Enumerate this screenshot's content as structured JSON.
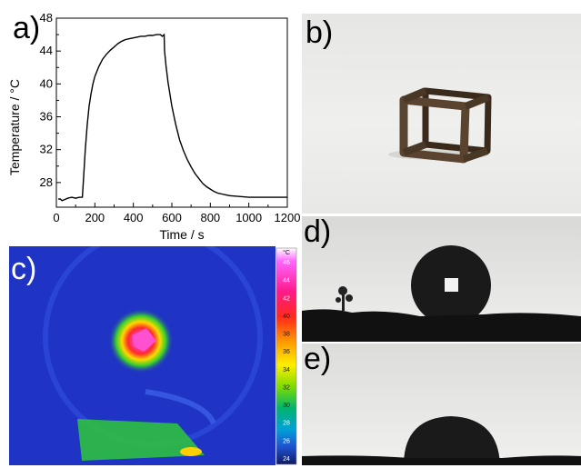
{
  "panel_labels": {
    "a": "a)",
    "b": "b)",
    "c": "c)",
    "d": "d)",
    "e": "e)"
  },
  "chart_data": {
    "type": "line",
    "xlabel": "Time / s",
    "ylabel": "Temperature / °C",
    "xlim": [
      0,
      1200
    ],
    "ylim": [
      25,
      48
    ],
    "xticks": [
      0,
      200,
      400,
      600,
      800,
      1000,
      1200
    ],
    "yticks": [
      28,
      32,
      36,
      40,
      44,
      48
    ],
    "grid": false,
    "series": [
      {
        "x": [
          10,
          20,
          30,
          40,
          60,
          80,
          100,
          120,
          135,
          140,
          150,
          160,
          170,
          180,
          190,
          200,
          220,
          240,
          260,
          280,
          300,
          320,
          340,
          360,
          380,
          400,
          420,
          440,
          460,
          480,
          500,
          520,
          540,
          550,
          560,
          562,
          570,
          580,
          600,
          620,
          640,
          660,
          680,
          700,
          720,
          740,
          760,
          780,
          800,
          820,
          840,
          860,
          880,
          900,
          950,
          1000,
          1050,
          1100,
          1150,
          1200
        ],
        "y": [
          26.0,
          26.0,
          25.8,
          25.9,
          26.1,
          26.2,
          26.1,
          26.2,
          26.2,
          28.0,
          32.0,
          35.0,
          37.3,
          38.8,
          40.0,
          40.9,
          42.1,
          43.0,
          43.6,
          44.1,
          44.5,
          44.9,
          45.2,
          45.4,
          45.5,
          45.6,
          45.7,
          45.8,
          45.8,
          45.9,
          45.9,
          46.0,
          46.0,
          45.8,
          46.0,
          44.0,
          42.2,
          40.2,
          37.3,
          35.1,
          33.2,
          31.9,
          30.8,
          29.9,
          29.1,
          28.5,
          27.9,
          27.5,
          27.2,
          26.9,
          26.7,
          26.6,
          26.5,
          26.4,
          26.3,
          26.2,
          26.2,
          26.2,
          26.2,
          26.2
        ]
      }
    ]
  },
  "thermal_scale": {
    "unit": "°C",
    "ticks": [
      "46",
      "44",
      "42",
      "40",
      "38",
      "36",
      "34",
      "32",
      "30",
      "28",
      "26",
      "24"
    ]
  },
  "colors": {
    "ir_background": "#1f33c4",
    "ir_hot": "#ff3fbf",
    "photo_background": "#ececea",
    "cube": "#4a3826",
    "droplet": "#1a1a1a"
  }
}
